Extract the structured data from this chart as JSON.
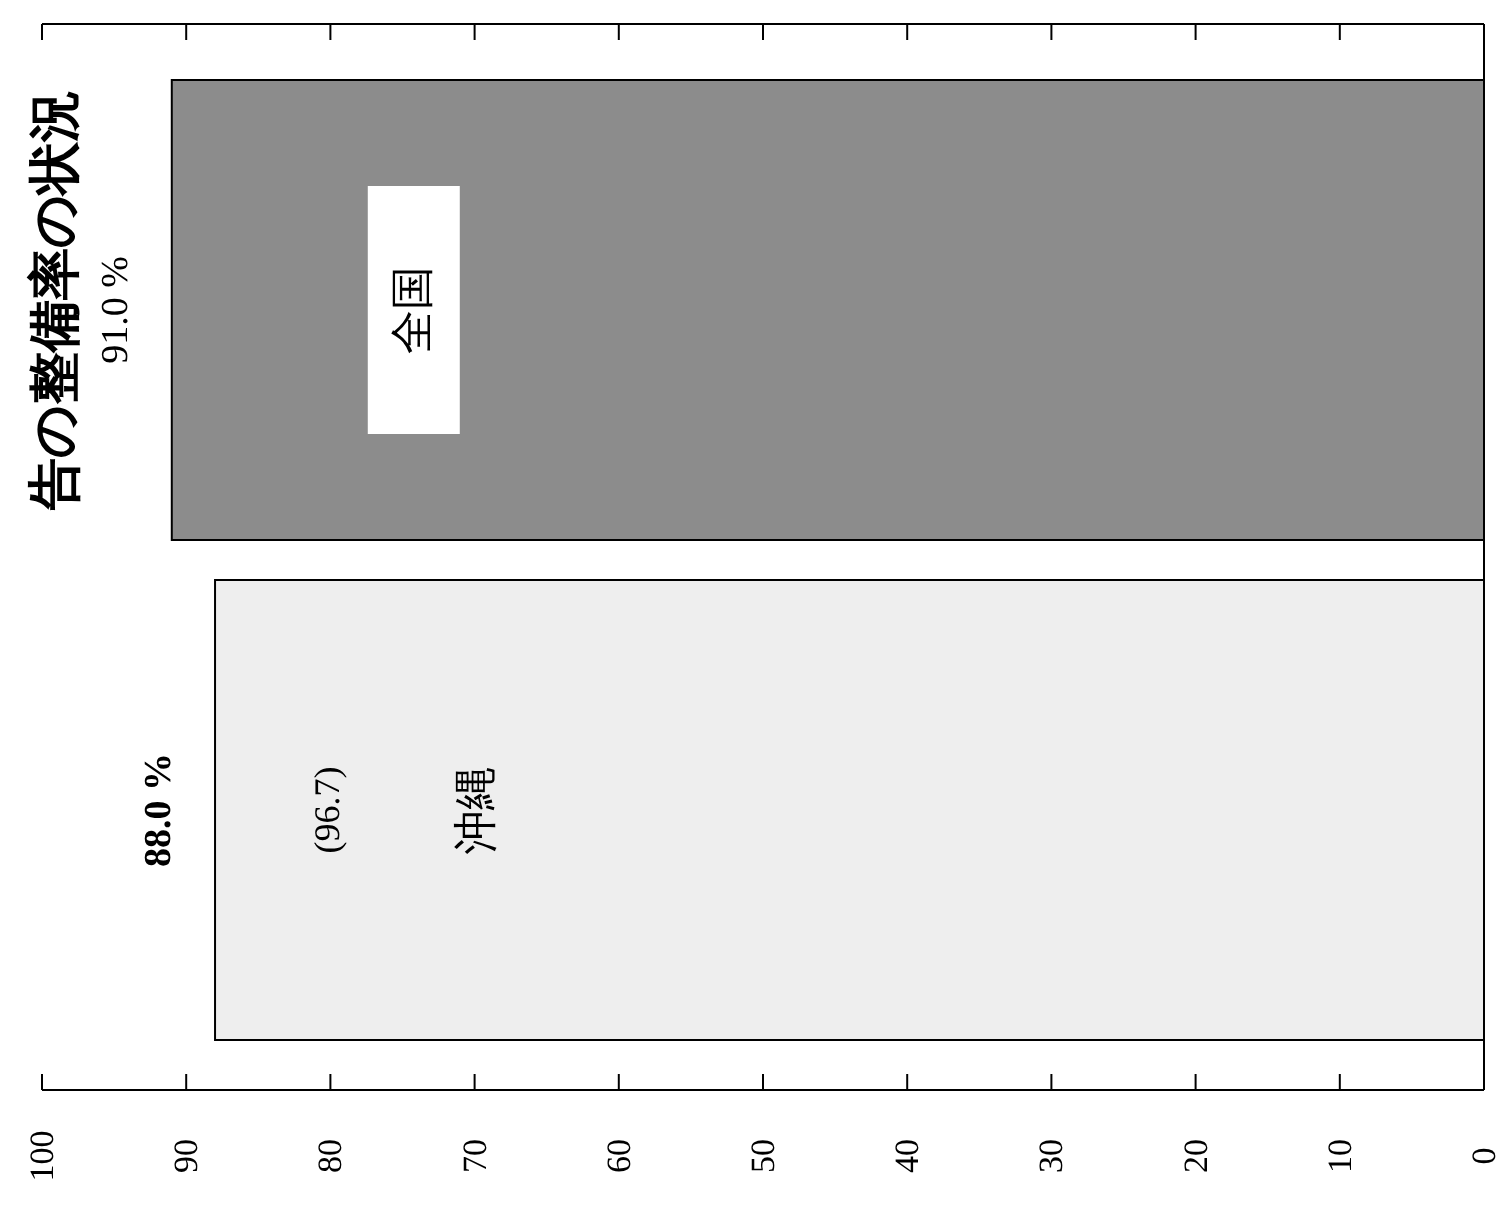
{
  "chart_data": {
    "type": "bar",
    "orientation": "horizontal",
    "title": "告の整備率の状況",
    "categories": [
      "全国",
      "沖縄"
    ],
    "values": [
      91.0,
      88.0
    ],
    "colors": [
      "#8c8c8c",
      "#eeeeee"
    ],
    "value_labels": [
      "91.0 %",
      "88.0 %"
    ],
    "annotations": [
      "(96.7)"
    ],
    "xlim": [
      100,
      0
    ],
    "xticks": [
      0,
      10,
      20,
      30,
      40,
      50,
      60,
      70,
      80,
      90,
      100
    ],
    "grid": false
  }
}
